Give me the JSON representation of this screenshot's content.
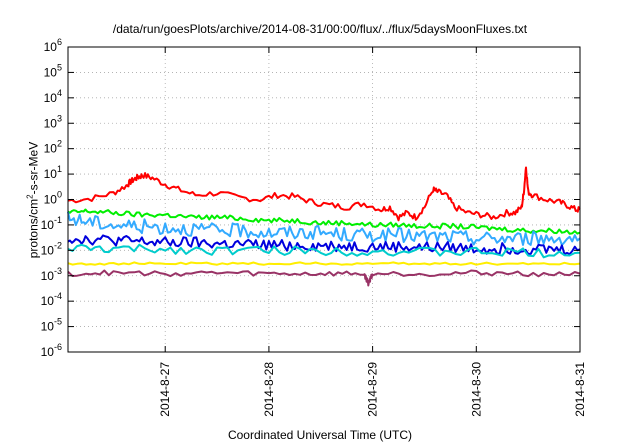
{
  "chart_data": {
    "type": "line",
    "title": "/data/run/goesPlots/archive/2014-08-31/00:00/flux/../flux/5daysMoonFluxes.txt",
    "xlabel": "Coordinated Universal Time (UTC)",
    "ylabel_parts": {
      "pre": "protons/cm",
      "sup": "2",
      "post": "-s-sr-MeV"
    },
    "x_range_days": [
      "2014-08-26 01:30",
      "2014-08-31 00:00"
    ],
    "x_ticks": [
      "2014-8-27",
      "2014-8-28",
      "2014-8-29",
      "2014-8-30",
      "2014-8-31"
    ],
    "y_scale": "log",
    "ylim": [
      1e-06,
      1000000.0
    ],
    "y_ticks": [
      {
        "base": "10",
        "exp": "-6"
      },
      {
        "base": "10",
        "exp": "-5"
      },
      {
        "base": "10",
        "exp": "-4"
      },
      {
        "base": "10",
        "exp": "-3"
      },
      {
        "base": "10",
        "exp": "-2"
      },
      {
        "base": "10",
        "exp": "-1"
      },
      {
        "base": "10",
        "exp": "0"
      },
      {
        "base": "10",
        "exp": "1"
      },
      {
        "base": "10",
        "exp": "2"
      },
      {
        "base": "10",
        "exp": "3"
      },
      {
        "base": "10",
        "exp": "4"
      },
      {
        "base": "10",
        "exp": "5"
      },
      {
        "base": "10",
        "exp": "6"
      }
    ],
    "grid": true,
    "series": [
      {
        "color": "#ff0000",
        "x": [
          "08-26 01:30",
          "08-26 07:00",
          "08-26 12:00",
          "08-26 15:00",
          "08-26 16:00",
          "08-26 17:00",
          "08-26 18:00",
          "08-26 19:00",
          "08-26 21:00",
          "08-27 00:00",
          "08-27 03:00",
          "08-27 07:00",
          "08-27 12:00",
          "08-27 17:00",
          "08-27 22:00",
          "08-28 02:00",
          "08-28 06:00",
          "08-28 10:00",
          "08-28 14:00",
          "08-28 18:00",
          "08-28 22:00",
          "08-29 02:00",
          "08-29 04:00",
          "08-29 06:00",
          "08-29 08:00",
          "08-29 10:00",
          "08-29 12:00",
          "08-29 14:00",
          "08-29 15:00",
          "08-29 17:00",
          "08-29 19:00",
          "08-29 22:00",
          "08-30 01:00",
          "08-30 04:00",
          "08-30 07:00",
          "08-30 09:00",
          "08-30 10:30",
          "08-30 11:00",
          "08-30 11:30",
          "08-30 12:00",
          "08-30 13:00",
          "08-30 16:00",
          "08-30 19:00",
          "08-30 21:00",
          "08-30 23:00",
          "08-31 00:00"
        ],
        "y": [
          0.9,
          1.1,
          1.8,
          3.5,
          5.0,
          6.5,
          8.0,
          9.0,
          7.0,
          4.0,
          2.5,
          1.5,
          1.8,
          1.2,
          1.0,
          1.5,
          1.3,
          0.8,
          0.6,
          0.5,
          0.7,
          0.4,
          0.5,
          0.2,
          0.3,
          0.2,
          0.5,
          2.5,
          2.0,
          1.5,
          0.5,
          0.3,
          0.25,
          0.2,
          0.3,
          0.3,
          0.5,
          2.0,
          20,
          2.0,
          1.5,
          1.0,
          0.8,
          0.6,
          0.4,
          0.4
        ]
      },
      {
        "color": "#00ee00",
        "x": [
          "08-26 01:30",
          "08-26 06:00",
          "08-26 12:00",
          "08-26 18:00",
          "08-27 00:00",
          "08-27 06:00",
          "08-27 12:00",
          "08-27 18:00",
          "08-28 00:00",
          "08-28 06:00",
          "08-28 12:00",
          "08-28 18:00",
          "08-29 00:00",
          "08-29 06:00",
          "08-29 12:00",
          "08-29 18:00",
          "08-30 00:00",
          "08-30 06:00",
          "08-30 12:00",
          "08-30 18:00",
          "08-31 00:00"
        ],
        "y": [
          0.3,
          0.35,
          0.3,
          0.25,
          0.25,
          0.2,
          0.2,
          0.18,
          0.15,
          0.15,
          0.12,
          0.12,
          0.1,
          0.1,
          0.09,
          0.09,
          0.08,
          0.07,
          0.06,
          0.06,
          0.05
        ]
      },
      {
        "color": "#33aaff",
        "x": [
          "08-26 01:30",
          "08-26 06:00",
          "08-26 12:00",
          "08-26 18:00",
          "08-27 00:00",
          "08-27 06:00",
          "08-27 12:00",
          "08-27 18:00",
          "08-28 00:00",
          "08-28 06:00",
          "08-28 12:00",
          "08-28 18:00",
          "08-29 00:00",
          "08-29 06:00",
          "08-29 12:00",
          "08-29 18:00",
          "08-30 00:00",
          "08-30 06:00",
          "08-30 12:00",
          "08-30 18:00",
          "08-31 00:00"
        ],
        "y": [
          0.18,
          0.14,
          0.1,
          0.09,
          0.08,
          0.07,
          0.06,
          0.06,
          0.05,
          0.05,
          0.05,
          0.04,
          0.04,
          0.04,
          0.035,
          0.035,
          0.03,
          0.03,
          0.03,
          0.03,
          0.03
        ]
      },
      {
        "color": "#0000dd",
        "x": [
          "08-26 01:30",
          "08-26 06:00",
          "08-26 12:00",
          "08-26 18:00",
          "08-27 00:00",
          "08-27 06:00",
          "08-27 12:00",
          "08-27 18:00",
          "08-28 00:00",
          "08-28 06:00",
          "08-28 12:00",
          "08-28 18:00",
          "08-29 00:00",
          "08-29 06:00",
          "08-29 12:00",
          "08-29 18:00",
          "08-30 00:00",
          "08-30 06:00",
          "08-30 12:00",
          "08-30 18:00",
          "08-31 00:00"
        ],
        "y": [
          0.03,
          0.028,
          0.025,
          0.022,
          0.02,
          0.02,
          0.018,
          0.017,
          0.016,
          0.016,
          0.015,
          0.015,
          0.014,
          0.014,
          0.013,
          0.013,
          0.012,
          0.012,
          0.012,
          0.011,
          0.011
        ]
      },
      {
        "color": "#00cccc",
        "x": [
          "08-26 01:30",
          "08-26 12:00",
          "08-27 00:00",
          "08-27 12:00",
          "08-28 00:00",
          "08-28 12:00",
          "08-29 00:00",
          "08-29 12:00",
          "08-30 00:00",
          "08-30 12:00",
          "08-31 00:00"
        ],
        "y": [
          0.012,
          0.011,
          0.011,
          0.01,
          0.01,
          0.0095,
          0.009,
          0.0085,
          0.0085,
          0.008,
          0.008
        ]
      },
      {
        "color": "#ffee00",
        "x": [
          "08-26 01:30",
          "08-26 12:00",
          "08-27 00:00",
          "08-27 12:00",
          "08-28 00:00",
          "08-28 12:00",
          "08-29 00:00",
          "08-29 12:00",
          "08-30 00:00",
          "08-30 12:00",
          "08-31 00:00"
        ],
        "y": [
          0.003,
          0.003,
          0.003,
          0.003,
          0.003,
          0.003,
          0.003,
          0.003,
          0.003,
          0.003,
          0.003
        ]
      },
      {
        "color": "#993366",
        "x": [
          "08-26 01:30",
          "08-26 12:00",
          "08-27 00:00",
          "08-27 12:00",
          "08-28 00:00",
          "08-28 12:00",
          "08-28 22:00",
          "08-28 23:00",
          "08-29 00:00",
          "08-29 12:00",
          "08-30 00:00",
          "08-30 12:00",
          "08-31 00:00"
        ],
        "y": [
          0.0012,
          0.0013,
          0.0012,
          0.0013,
          0.0012,
          0.0012,
          0.0012,
          0.0005,
          0.0012,
          0.0012,
          0.0013,
          0.0012,
          0.0012
        ]
      }
    ]
  }
}
